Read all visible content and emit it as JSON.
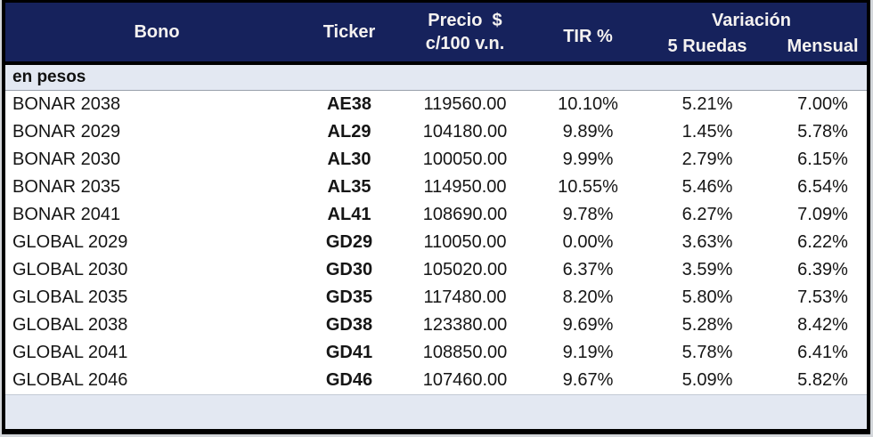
{
  "colors": {
    "header_bg": "#16225c",
    "header_text": "#f5f2f0",
    "section_bg": "#e3e8f2",
    "frame_border": "#000000"
  },
  "header": {
    "bono": "Bono",
    "ticker": "Ticker",
    "precio_line1": "Precio  $",
    "precio_line2": "c/100 v.n.",
    "tir": "TIR %",
    "variacion": "Variación",
    "ruedas": "5 Ruedas",
    "mensual": "Mensual"
  },
  "section_label": "en pesos",
  "rows": [
    {
      "bono": "BONAR 2038",
      "ticker": "AE38",
      "precio": "119560.00",
      "tir": "10.10%",
      "ruedas": "5.21%",
      "mensual": "7.00%"
    },
    {
      "bono": "BONAR 2029",
      "ticker": "AL29",
      "precio": "104180.00",
      "tir": "9.89%",
      "ruedas": "1.45%",
      "mensual": "5.78%"
    },
    {
      "bono": "BONAR 2030",
      "ticker": "AL30",
      "precio": "100050.00",
      "tir": "9.99%",
      "ruedas": "2.79%",
      "mensual": "6.15%"
    },
    {
      "bono": "BONAR 2035",
      "ticker": "AL35",
      "precio": "114950.00",
      "tir": "10.55%",
      "ruedas": "5.46%",
      "mensual": "6.54%"
    },
    {
      "bono": "BONAR 2041",
      "ticker": "AL41",
      "precio": "108690.00",
      "tir": "9.78%",
      "ruedas": "6.27%",
      "mensual": "7.09%"
    },
    {
      "bono": "GLOBAL 2029",
      "ticker": "GD29",
      "precio": "110050.00",
      "tir": "0.00%",
      "ruedas": "3.63%",
      "mensual": "6.22%"
    },
    {
      "bono": "GLOBAL 2030",
      "ticker": "GD30",
      "precio": "105020.00",
      "tir": "6.37%",
      "ruedas": "3.59%",
      "mensual": "6.39%"
    },
    {
      "bono": "GLOBAL 2035",
      "ticker": "GD35",
      "precio": "117480.00",
      "tir": "8.20%",
      "ruedas": "5.80%",
      "mensual": "7.53%"
    },
    {
      "bono": "GLOBAL 2038",
      "ticker": "GD38",
      "precio": "123380.00",
      "tir": "9.69%",
      "ruedas": "5.28%",
      "mensual": "8.42%"
    },
    {
      "bono": "GLOBAL 2041",
      "ticker": "GD41",
      "precio": "108850.00",
      "tir": "9.19%",
      "ruedas": "5.78%",
      "mensual": "6.41%"
    },
    {
      "bono": "GLOBAL 2046",
      "ticker": "GD46",
      "precio": "107460.00",
      "tir": "9.67%",
      "ruedas": "5.09%",
      "mensual": "5.82%"
    }
  ]
}
